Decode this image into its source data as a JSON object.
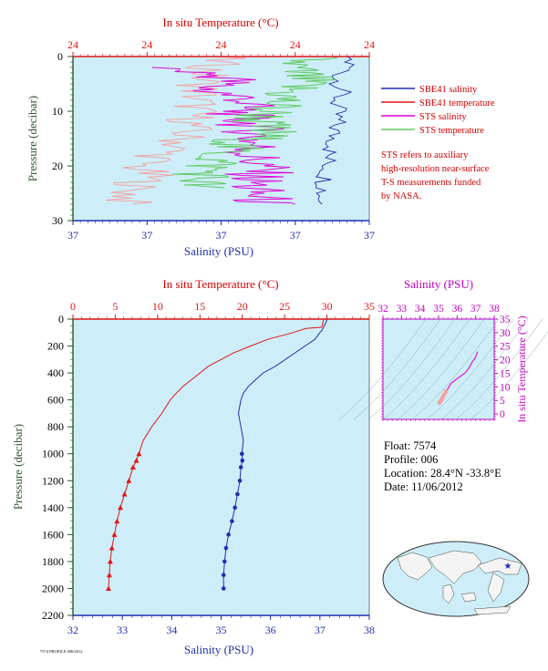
{
  "colors": {
    "plot_bg": "#cdeef8",
    "salinity": "#1f2fb0",
    "temperature": "#e01515",
    "sts_salinity": "#e000d8",
    "sts_temperature": "#5ec85e",
    "sts_temperature_light": "#f3a0a0",
    "pressure_axis": "#2a5a2a",
    "ts_axis": "#c000c0",
    "info_red": "#d40000"
  },
  "top_chart": {
    "top_axis_label": "In situ Temperature (°C)",
    "top_ticks": [
      "24",
      "24",
      "24",
      "24",
      "24"
    ],
    "left_axis_label": "Pressure (decibar)",
    "left_ticks": [
      "0",
      "10",
      "20",
      "30"
    ],
    "bottom_axis_label": "Salinity (PSU)",
    "bottom_ticks": [
      "37",
      "37",
      "37",
      "37",
      "37"
    ]
  },
  "legend": {
    "items": [
      {
        "label": "SBE41 salinity",
        "color": "#1f2fb0"
      },
      {
        "label": "SBE41 temperature",
        "color": "#e01515"
      },
      {
        "label": "STS salinity",
        "color": "#e000d8"
      },
      {
        "label": "STS temperature",
        "color": "#5ec85e"
      }
    ],
    "note": [
      "STS refers to auxiliary",
      "high-resolution near-surface",
      "T-S measurements funded",
      "by NASA."
    ]
  },
  "bottom_chart": {
    "top_axis_label": "In situ Temperature (°C)",
    "top_ticks": [
      "0",
      "5",
      "10",
      "15",
      "20",
      "25",
      "30",
      "35"
    ],
    "left_axis_label": "Pressure (decibar)",
    "left_ticks": [
      "0",
      "200",
      "400",
      "600",
      "800",
      "1000",
      "1200",
      "1400",
      "1600",
      "1800",
      "2000",
      "2200"
    ],
    "bottom_axis_label": "Salinity (PSU)",
    "bottom_ticks": [
      "32",
      "33",
      "34",
      "35",
      "36",
      "37",
      "38"
    ]
  },
  "ts_chart": {
    "top_axis_label": "Salinity (PSU)",
    "top_ticks": [
      "32",
      "33",
      "34",
      "35",
      "36",
      "37",
      "38"
    ],
    "right_axis_label": "In situ Temperature (°C)",
    "right_ticks": [
      "0",
      "5",
      "10",
      "15",
      "20",
      "25",
      "30",
      "35"
    ]
  },
  "info": {
    "float": "Float:  7574",
    "profile": "Profile:  006",
    "location": "Location:  28.4°N  -33.8°E",
    "date": "Date:  11/06/2012"
  },
  "footer_note": "7574 PROFILE 006/2012",
  "chart_data": [
    {
      "type": "line",
      "title": "",
      "x_axis_label": "Salinity (PSU)",
      "x2_axis_label": "In situ Temperature (°C)",
      "y_axis_label": "Pressure (decibar)",
      "ylim": [
        0,
        30
      ],
      "y_inverted": true,
      "series": [
        {
          "name": "SBE41 salinity",
          "axis": "salinity",
          "values": [
            [
              0.93,
              0
            ],
            [
              0.93,
              2
            ],
            [
              0.89,
              4
            ],
            [
              0.91,
              6
            ],
            [
              0.89,
              8
            ],
            [
              0.89,
              10
            ],
            [
              0.89,
              12
            ],
            [
              0.88,
              14
            ],
            [
              0.88,
              16
            ],
            [
              0.86,
              18
            ],
            [
              0.86,
              20
            ],
            [
              0.85,
              22
            ],
            [
              0.85,
              24
            ],
            [
              0.84,
              25
            ],
            [
              0.84,
              27
            ]
          ]
        },
        {
          "name": "SBE41 temperature",
          "axis": "temperature",
          "values": [
            [
              0.5,
              0
            ],
            [
              0.44,
              4
            ],
            [
              0.42,
              8
            ],
            [
              0.4,
              12
            ],
            [
              0.36,
              16
            ],
            [
              0.3,
              18
            ],
            [
              0.22,
              20
            ],
            [
              0.26,
              22
            ],
            [
              0.2,
              24
            ],
            [
              0.18,
              27
            ]
          ]
        },
        {
          "name": "STS salinity",
          "axis": "salinity",
          "values": [
            [
              0.3,
              2
            ],
            [
              0.55,
              4
            ],
            [
              0.45,
              6
            ],
            [
              0.6,
              8
            ],
            [
              0.55,
              10
            ],
            [
              0.62,
              14
            ],
            [
              0.6,
              18
            ],
            [
              0.64,
              20
            ],
            [
              0.6,
              24
            ],
            [
              0.65,
              27
            ]
          ]
        },
        {
          "name": "STS temperature",
          "axis": "temperature",
          "values": [
            [
              0.8,
              0
            ],
            [
              0.72,
              2
            ],
            [
              0.78,
              4
            ],
            [
              0.7,
              8
            ],
            [
              0.62,
              12
            ],
            [
              0.66,
              14
            ],
            [
              0.55,
              16
            ],
            [
              0.5,
              18
            ],
            [
              0.44,
              22
            ],
            [
              0.42,
              24
            ]
          ]
        }
      ]
    },
    {
      "type": "line",
      "title": "",
      "x_axis_label": "Salinity (PSU)",
      "x2_axis_label": "In situ Temperature (°C)",
      "y_axis_label": "Pressure (decibar)",
      "xlim": [
        32,
        38
      ],
      "x2lim": [
        0,
        35
      ],
      "ylim": [
        0,
        2200
      ],
      "y_inverted": true,
      "series": [
        {
          "name": "Salinity",
          "axis": "salinity",
          "x": [
            37.15,
            37.1,
            37.05,
            37.0,
            36.9,
            36.7,
            36.5,
            36.3,
            36.1,
            35.85,
            35.7,
            35.55,
            35.45,
            35.4,
            35.35,
            35.4,
            35.45,
            35.42,
            35.43,
            35.4,
            35.38,
            35.33,
            35.28,
            35.22,
            35.15,
            35.1,
            35.07,
            35.05,
            35.05
          ],
          "y": [
            0,
            40,
            80,
            100,
            150,
            200,
            250,
            300,
            350,
            400,
            450,
            500,
            550,
            600,
            700,
            800,
            900,
            1000,
            1050,
            1100,
            1200,
            1300,
            1400,
            1500,
            1600,
            1700,
            1800,
            1900,
            2000
          ]
        },
        {
          "name": "Temperature",
          "axis": "temperature",
          "x": [
            29.6,
            29.4,
            27.5,
            26.0,
            23.0,
            21.0,
            19.0,
            17.5,
            16.0,
            15.0,
            14.0,
            13.0,
            12.2,
            11.5,
            10.5,
            9.3,
            8.3,
            7.8,
            7.5,
            7.1,
            6.6,
            6.1,
            5.6,
            5.2,
            4.9,
            4.6,
            4.4,
            4.3,
            4.2
          ],
          "y": [
            0,
            60,
            70,
            100,
            150,
            200,
            250,
            300,
            350,
            400,
            450,
            500,
            550,
            600,
            700,
            800,
            900,
            1000,
            1050,
            1100,
            1200,
            1300,
            1400,
            1500,
            1600,
            1700,
            1800,
            1900,
            2000
          ]
        }
      ]
    },
    {
      "type": "scatter",
      "title": "",
      "x_axis_label": "Salinity (PSU)",
      "y_axis_label": "In situ Temperature (°C)",
      "xlim": [
        32,
        38
      ],
      "ylim": [
        -2,
        35
      ],
      "series": [
        {
          "name": "T-S",
          "x": [
            35.05,
            35.1,
            35.15,
            35.22,
            35.3,
            35.4,
            35.5,
            35.6,
            35.7,
            35.85,
            36.0,
            36.2,
            36.4,
            36.6,
            36.8,
            37.0,
            37.1
          ],
          "y": [
            4.2,
            4.6,
            5.2,
            6.1,
            7.1,
            8.3,
            9.3,
            10.5,
            11.5,
            12.2,
            13.0,
            14.0,
            15.0,
            16.5,
            19.0,
            21.0,
            23.0
          ]
        }
      ]
    }
  ]
}
